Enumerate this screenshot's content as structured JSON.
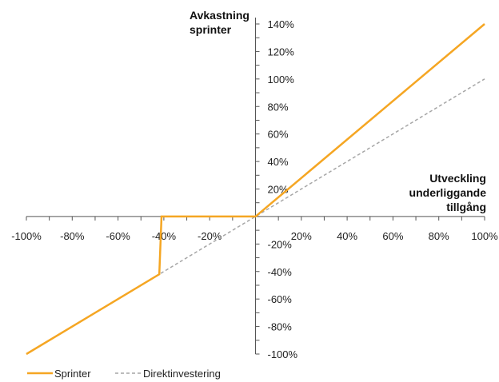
{
  "chart_data": {
    "type": "line",
    "title": "",
    "xlabel": [
      "Utveckling",
      "underliggande",
      "tillgång"
    ],
    "ylabel": [
      "Avkastning",
      "sprinter"
    ],
    "xlim": [
      -100,
      100
    ],
    "ylim": [
      -100,
      140
    ],
    "x_ticks": [
      -100,
      -80,
      -60,
      -40,
      -20,
      0,
      20,
      40,
      60,
      80,
      100
    ],
    "x_tick_labels": [
      "-100%",
      "-80%",
      "-60%",
      "-40%",
      "-20%",
      "",
      "20%",
      "40%",
      "60%",
      "80%",
      "100%"
    ],
    "y_tick_labels": [
      {
        "value": 140,
        "label": "140%"
      },
      {
        "value": 120,
        "label": "120%"
      },
      {
        "value": 100,
        "label": "100%"
      },
      {
        "value": 80,
        "label": "80%"
      },
      {
        "value": 60,
        "label": "60%"
      },
      {
        "value": 40,
        "label": "40%"
      },
      {
        "value": 20,
        "label": "20%"
      },
      {
        "value": -20,
        "label": "-20%"
      },
      {
        "value": -40,
        "label": "-40%"
      },
      {
        "value": -60,
        "label": "-60%"
      },
      {
        "value": -80,
        "label": "-80%"
      },
      {
        "value": -100,
        "label": "-100%"
      }
    ],
    "series": [
      {
        "name": "Sprinter",
        "color": "#F5A623",
        "style": "solid",
        "x": [
          -100,
          -42,
          -41,
          0,
          100
        ],
        "y": [
          -100,
          -42,
          0,
          0,
          140
        ]
      },
      {
        "name": "Direktinvestering",
        "color": "#A6A6A6",
        "style": "dashed",
        "x": [
          -100,
          100
        ],
        "y": [
          -100,
          100
        ]
      }
    ],
    "grid": false,
    "legend_position": "bottom-left"
  }
}
